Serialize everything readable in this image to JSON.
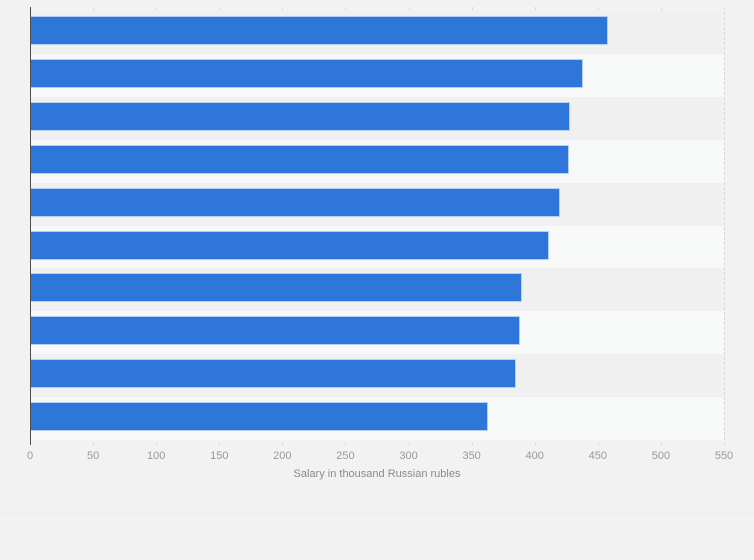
{
  "colors": {
    "background": "#f2f2f2",
    "bar": "#2e76d9",
    "bar_border": "rgba(255,255,255,0.65)",
    "band_odd": "#f0f0f1",
    "band_even": "#f7f8f8",
    "gridline": "#d9d9d9",
    "axis_line": "#4d4d4d",
    "tick_label": "#999999",
    "axis_title": "#8a8a8a",
    "footer_divider": "#ececec"
  },
  "chart_data": {
    "type": "bar",
    "orientation": "horizontal",
    "title": "",
    "xlabel": "Salary in thousand Russian rubles",
    "ylabel": "",
    "categories": [
      "",
      "",
      "",
      "",
      "",
      "",
      "",
      "",
      "",
      ""
    ],
    "values": [
      458,
      438,
      428,
      427,
      420,
      411,
      390,
      388,
      385,
      363
    ],
    "xlim": [
      0,
      550
    ],
    "x_ticks": [
      0,
      50,
      100,
      150,
      200,
      250,
      300,
      350,
      400,
      450,
      500,
      550
    ],
    "grid": "vertical-dashed",
    "row_bands": "alternating",
    "legend": "none"
  }
}
